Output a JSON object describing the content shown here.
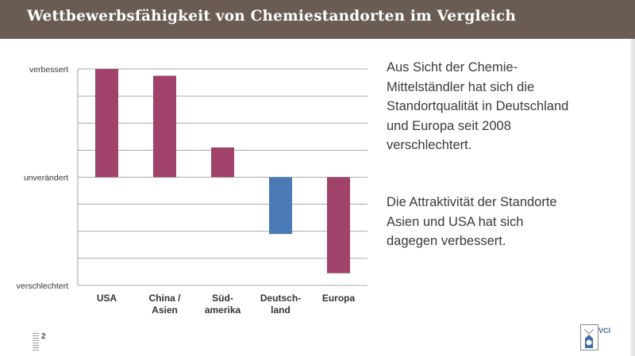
{
  "title": "Wettbewerbsfähigkeit von Chemiestandorten im Vergleich",
  "chart_data": {
    "type": "bar",
    "y_axis_labels": {
      "top": "verbessert",
      "middle": "unverändert",
      "bottom": "verschlechtert"
    },
    "ylim": [
      -4,
      4
    ],
    "grid": true,
    "bars": [
      {
        "category_lines": [
          "USA"
        ],
        "value": 4.0,
        "color": "#a0426a"
      },
      {
        "category_lines": [
          "China /",
          "Asien"
        ],
        "value": 3.75,
        "color": "#a0426a"
      },
      {
        "category_lines": [
          "Süd-",
          "amerika"
        ],
        "value": 1.1,
        "color": "#a0426a"
      },
      {
        "category_lines": [
          "Deutsch-",
          "land"
        ],
        "value": -2.1,
        "color": "#4a7ab5"
      },
      {
        "category_lines": [
          "Europa"
        ],
        "value": -3.55,
        "color": "#a0426a"
      }
    ]
  },
  "text": {
    "para1": "Aus Sicht der Chemie-\nMittelständler hat sich die\nStandortqualität in Deutschland\nund Europa seit 2008\nverschlechtert.",
    "para2": "Die Attraktivität der Standorte\nAsien und USA hat sich\ndagegen verbessert."
  },
  "footer": {
    "page_number": "2",
    "logo_text": "VCI"
  }
}
